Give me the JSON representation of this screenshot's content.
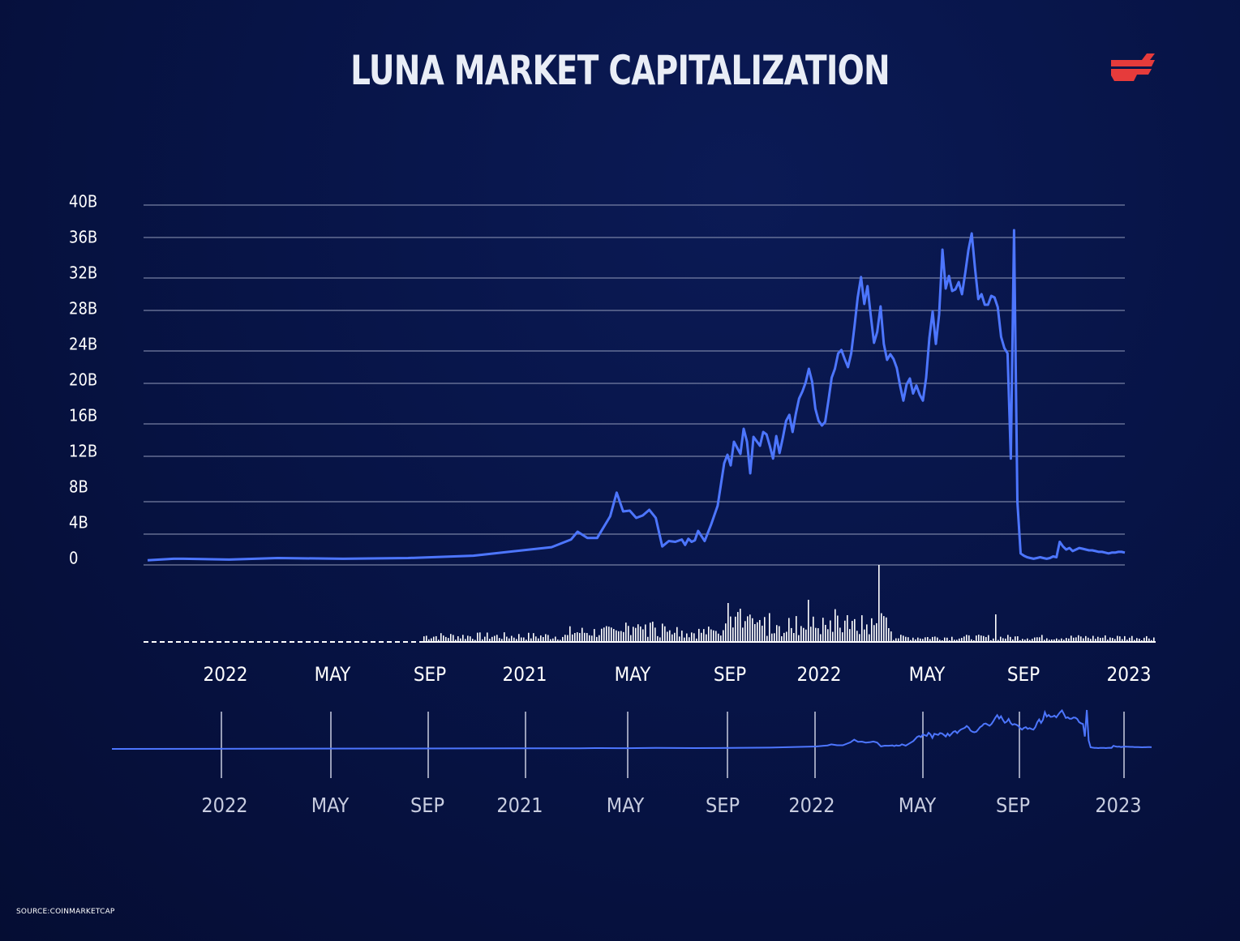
{
  "header": {
    "title": "LUNA MARKET CAPITALIZATION",
    "source": "SOURCE:COINMARKETCAP"
  },
  "colors": {
    "line": "#4d76ff",
    "grid": "#8a93b3",
    "volume": "#ffffff",
    "brand": "#e63b3b",
    "navigator_line": "#4d76ff",
    "navigator_tick": "#c8cde0"
  },
  "chart_data": {
    "type": "line",
    "title": "LUNA MARKET CAPITALIZATION",
    "yticks": [
      "0",
      "4B",
      "8B",
      "12B",
      "16B",
      "20B",
      "24B",
      "28B",
      "32B",
      "36B",
      "40B"
    ],
    "ylim": [
      0,
      40
    ],
    "y_unit": "B",
    "xticks": [
      "2022",
      "MAY",
      "SEP",
      "2021",
      "MAY",
      "SEP",
      "2022",
      "MAY",
      "SEP",
      "2023"
    ],
    "navigator_xticks": [
      "2022",
      "MAY",
      "SEP",
      "2021",
      "MAY",
      "SEP",
      "2022",
      "MAY",
      "SEP",
      "2023"
    ],
    "grid": true,
    "legend": "none",
    "series": [
      {
        "x": [
          0,
          8,
          11,
          25,
          40,
          60,
          80,
          100,
          124,
          130,
          132,
          135,
          138,
          142,
          144,
          146,
          148,
          150,
          152,
          154,
          156,
          158,
          160,
          162,
          164,
          165,
          166,
          167,
          168,
          169,
          171,
          173,
          175,
          177,
          178,
          179,
          180,
          182,
          183,
          184,
          185,
          186,
          188,
          189,
          190,
          191,
          192,
          193,
          194,
          195,
          196,
          197,
          198,
          199,
          200,
          201,
          202,
          203,
          204,
          205,
          206,
          207,
          208,
          209,
          210,
          211,
          212,
          213,
          214,
          215,
          216,
          217,
          218,
          219,
          220,
          221,
          222,
          223,
          224,
          225,
          226,
          227,
          228,
          229,
          230,
          231,
          232,
          233,
          234,
          235,
          236,
          237,
          238,
          239,
          240,
          241,
          242,
          243,
          244,
          245,
          246,
          247,
          248,
          249,
          250,
          251,
          252,
          253,
          254,
          255,
          256,
          257,
          258,
          259,
          260,
          261,
          262,
          263,
          264,
          265,
          266,
          267,
          268,
          269,
          270,
          271,
          272,
          273,
          274,
          275,
          276,
          277,
          278,
          279,
          280,
          281,
          282,
          283,
          284,
          285,
          286,
          287,
          288,
          289,
          290,
          291,
          292,
          293,
          294,
          295,
          296,
          297,
          298,
          299,
          300
        ],
        "y": [
          0.6,
          0.8,
          0.8,
          0.7,
          0.9,
          0.8,
          0.9,
          1.2,
          2.3,
          3.3,
          4.3,
          3.5,
          3.5,
          6.2,
          8.8,
          6.8,
          6.9,
          6.0,
          6.3,
          7.0,
          6.0,
          2.4,
          3.1,
          3.0,
          3.3,
          2.6,
          3.4,
          3.0,
          3.2,
          4.4,
          3.1,
          5.2,
          7.5,
          11.4,
          12.2,
          11.2,
          13.8,
          12.3,
          15.4,
          13.8,
          10.5,
          14.4,
          13.3,
          15.0,
          14.7,
          13.3,
          11.8,
          14.5,
          12.4,
          14.3,
          16.3,
          16.9,
          15.0,
          17.0,
          18.5,
          19.2,
          20.1,
          21.8,
          20.2,
          17.5,
          16.3,
          15.8,
          16.2,
          18.3,
          20.7,
          21.8,
          23.7,
          24.1,
          23.0,
          22.0,
          23.7,
          26.4,
          29.6,
          32.1,
          28.8,
          31.0,
          27.5,
          24.8,
          25.9,
          28.5,
          24.7,
          22.9,
          23.6,
          23.0,
          21.9,
          19.8,
          18.3,
          19.9,
          20.6,
          19.0,
          19.8,
          18.9,
          18.3,
          20.7,
          25.3,
          27.9,
          24.7,
          27.6,
          34.8,
          30.7,
          32.2,
          30.4,
          30.6,
          31.5,
          30.0,
          32.5,
          34.8,
          36.5,
          33.0,
          29.4,
          30.0,
          28.7,
          28.7,
          29.8,
          29.6,
          28.4,
          25.4,
          24.3,
          23.7,
          11.8,
          36.9,
          8.0,
          1.5,
          1.2,
          1.0,
          0.9,
          0.8,
          0.9,
          1.0,
          0.9,
          0.8,
          0.9,
          1.1,
          1.0,
          3.0,
          2.4,
          2.0,
          2.2,
          1.8,
          2.0,
          2.2,
          2.1,
          2.0,
          1.9,
          1.9,
          1.8,
          1.7,
          1.7,
          1.6,
          1.5,
          1.6,
          1.6,
          1.7,
          1.7,
          1.6
        ]
      }
    ]
  }
}
